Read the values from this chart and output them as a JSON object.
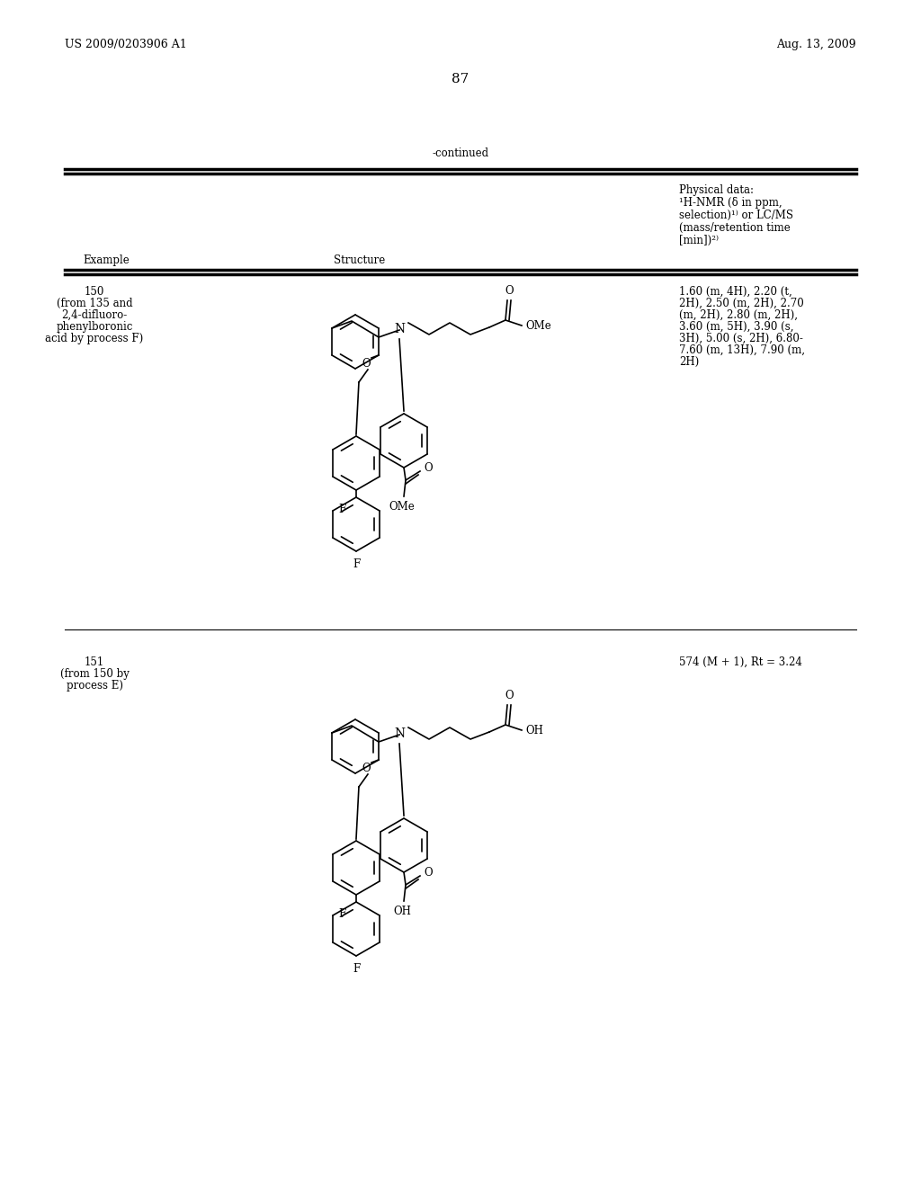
{
  "background_color": "#ffffff",
  "page_number": "87",
  "header_left": "US 2009/0203906 A1",
  "header_right": "Aug. 13, 2009",
  "continued_text": "-continued",
  "example_150_label_lines": [
    "150",
    "(from 135 and",
    "2,4-difluoro-",
    "phenylboronic",
    "acid by process F)"
  ],
  "example_150_data_lines": [
    "1.60 (m, 4H), 2.20 (t,",
    "2H), 2.50 (m, 2H), 2.70",
    "(m, 2H), 2.80 (m, 2H),",
    "3.60 (m, 5H), 3.90 (s,",
    "3H), 5.00 (s, 2H), 6.80-",
    "7.60 (m, 13H), 7.90 (m,",
    "2H)"
  ],
  "example_151_label_lines": [
    "151",
    "(from 150 by",
    "process E)"
  ],
  "example_151_data": "574 (M + 1), Rt = 3.24",
  "col_example": "Example",
  "col_structure": "Structure",
  "col_physdata_lines": [
    "Physical data:",
    "¹H-NMR (δ in ppm,",
    "selection)¹⁾ or LC/MS",
    "(mass/retention time",
    "[min])²⁾"
  ],
  "font_size_small": 8.5,
  "font_size_header": 9,
  "font_size_page": 11
}
